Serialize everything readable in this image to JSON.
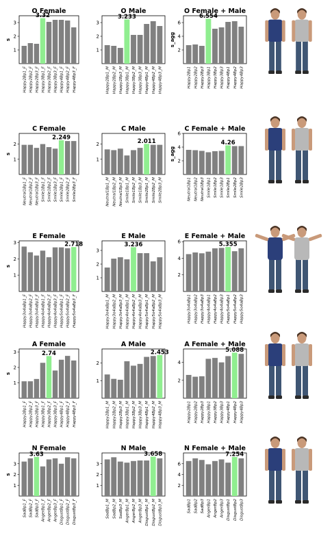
{
  "colors": {
    "bar": "#808080",
    "highlight": "#90ee90",
    "axis": "#000000"
  },
  "chart_data": [
    {
      "type": "bar",
      "title": "O Female",
      "ylabel": "s",
      "ylim": [
        0,
        3.5
      ],
      "yticks": [
        1,
        2,
        3
      ],
      "categories": [
        "Happy2Bp1_F",
        "Happy2Bp2_F",
        "Happy2Bp3_F",
        "Happy3Bp1_F",
        "Happy3Bp2_F",
        "Happy3Bp3_F",
        "Happy4Bp1_F",
        "Happy4Bp2_F",
        "Happy4Bp3_F"
      ],
      "values": [
        1.3,
        1.5,
        1.45,
        3.32,
        3.05,
        3.2,
        3.2,
        3.15,
        2.65
      ],
      "highlight_index": 3,
      "highlight_label": "3.32"
    },
    {
      "type": "bar",
      "title": "O Male",
      "ylabel": "",
      "ylim": [
        0,
        3.5
      ],
      "yticks": [
        1,
        2,
        3
      ],
      "categories": [
        "Happy2Bp1_M",
        "Happy2Bp2_M",
        "Happy2Bp3_M",
        "Happy3Bp1_M",
        "Happy3Bp2_M",
        "Happy3Bp3_M",
        "Happy4Bp1_M",
        "Happy4Bp2_M",
        "Happy4Bp3_M"
      ],
      "values": [
        1.35,
        1.3,
        1.15,
        3.233,
        2.1,
        2.1,
        2.9,
        3.1,
        2.75
      ],
      "highlight_index": 3,
      "highlight_label": "3.233"
    },
    {
      "type": "bar",
      "title": "O Female + Male",
      "ylabel": "s_agg",
      "ylim": [
        0,
        7
      ],
      "yticks": [
        2,
        4,
        6
      ],
      "categories": [
        "Happy2Bp1",
        "Happy2Bp2",
        "Happy2Bp3",
        "Happy3Bp1",
        "Happy3Bp2",
        "Happy3Bp3",
        "Happy4Bp1",
        "Happy4Bp2",
        "Happy4Bp3"
      ],
      "values": [
        2.7,
        2.8,
        2.6,
        6.554,
        5.1,
        5.3,
        6.1,
        6.2,
        5.4
      ],
      "highlight_index": 3,
      "highlight_label": "6.554"
    },
    {
      "type": "bar",
      "title": "C Female",
      "ylabel": "s",
      "ylim": [
        0,
        2.7
      ],
      "yticks": [
        1,
        2
      ],
      "categories": [
        "Neutral1Bp1_F",
        "Neutral1Bp2_F",
        "Neutral1Bp3_F",
        "Smile1Bp1_F",
        "Smile1Bp2_F",
        "Smile1Bp3_F",
        "Smile2Bp1_F",
        "Smile2Bp2_F",
        "Smile2Bp3_F"
      ],
      "values": [
        1.95,
        1.95,
        1.75,
        2.0,
        1.8,
        1.7,
        2.249,
        2.2,
        2.2
      ],
      "highlight_index": 6,
      "highlight_label": "2.249"
    },
    {
      "type": "bar",
      "title": "C Male",
      "ylabel": "",
      "ylim": [
        0,
        2.7
      ],
      "yticks": [
        1,
        2
      ],
      "categories": [
        "Neutral1Bp1_M",
        "Neutral1Bp2_M",
        "Neutral1Bp3_M",
        "Smile1Bp1_M",
        "Smile1Bp2_M",
        "Smile1Bp3_M",
        "Smile2Bp1_M",
        "Smile2Bp2_M",
        "Smile2Bp3_M"
      ],
      "values": [
        1.65,
        1.6,
        1.7,
        1.25,
        1.6,
        1.75,
        2.011,
        1.95,
        1.95
      ],
      "highlight_index": 6,
      "highlight_label": "2.011"
    },
    {
      "type": "bar",
      "title": "C Female + Male",
      "ylabel": "s_agg",
      "ylim": [
        0,
        6
      ],
      "yticks": [
        2,
        4,
        6
      ],
      "categories": [
        "Neutral1Bp1",
        "Neutral1Bp2",
        "Neutral1Bp3",
        "Smile1Bp1",
        "Smile1Bp2",
        "Smile1Bp3",
        "Smile2Bp1",
        "Smile2Bp2",
        "Smile2Bp3"
      ],
      "values": [
        3.6,
        3.55,
        3.45,
        3.25,
        3.4,
        3.45,
        4.26,
        4.15,
        4.15
      ],
      "highlight_index": 6,
      "highlight_label": "4.26"
    },
    {
      "type": "bar",
      "title": "E Female",
      "ylabel": "s",
      "ylim": [
        0,
        3.1
      ],
      "yticks": [
        1,
        2,
        3
      ],
      "categories": [
        "Happy3o4aBp1_F",
        "Happy3o4aBp2_F",
        "Happy3o4aBp3_F",
        "Happy4o4aBp1_F",
        "Happy4o4aBp2_F",
        "Happy4o4aBp3_F",
        "Happy5o4aBp1_F",
        "Happy5o4aBp2_F",
        "Happy5o4aBp3_F"
      ],
      "values": [
        2.75,
        2.4,
        2.2,
        2.5,
        2.1,
        2.7,
        2.7,
        2.65,
        2.718
      ],
      "highlight_index": 8,
      "highlight_label": "2.718"
    },
    {
      "type": "bar",
      "title": "E Male",
      "ylabel": "",
      "ylim": [
        0,
        3.7
      ],
      "yticks": [
        1,
        2,
        3
      ],
      "categories": [
        "Happy3o4aBp1_M",
        "Happy3o4aBp2_M",
        "Happy3o4aBp3_M",
        "Happy4o4aBp1_M",
        "Happy4o4aBp2_M",
        "Happy4o4aBp3_M",
        "Happy5o4aBp1_M",
        "Happy5o4aBp2_M",
        "Happy5o4aBp3_M"
      ],
      "values": [
        1.75,
        2.4,
        2.5,
        2.35,
        3.236,
        2.8,
        2.8,
        2.2,
        2.5
      ],
      "highlight_index": 4,
      "highlight_label": "3.236"
    },
    {
      "type": "bar",
      "title": "E Female + Male",
      "ylabel": "",
      "ylim": [
        0,
        6.1
      ],
      "yticks": [
        2,
        4,
        6
      ],
      "categories": [
        "Happy3o4aBp1",
        "Happy3o4aBp2",
        "Happy3o4aBp3",
        "Happy4o4aBp1",
        "Happy4o4aBp2",
        "Happy4o4aBp3",
        "Happy5o4aBp1",
        "Happy5o4aBp2",
        "Happy5o4aBp3"
      ],
      "values": [
        4.5,
        4.7,
        4.6,
        4.8,
        5.2,
        5.25,
        5.355,
        4.85,
        5.2
      ],
      "highlight_index": 6,
      "highlight_label": "5.355"
    },
    {
      "type": "bar",
      "title": "A Female",
      "ylabel": "s",
      "ylim": [
        0,
        3.2
      ],
      "yticks": [
        1,
        2,
        3
      ],
      "categories": [
        "Happy2Bp1_F",
        "Happy2Bp2_F",
        "Happy2Bp3_F",
        "Happy3Bp1_F",
        "Happy3Bp2_F",
        "Happy3Bp3_F",
        "Happy4Bp1_F",
        "Happy4Bp2_F",
        "Happy4Bp3_F"
      ],
      "values": [
        1.1,
        1.1,
        1.25,
        2.3,
        2.74,
        1.8,
        2.5,
        2.75,
        2.45
      ],
      "highlight_index": 4,
      "highlight_label": "2.74"
    },
    {
      "type": "bar",
      "title": "A Male",
      "ylabel": "",
      "ylim": [
        0,
        2.8
      ],
      "yticks": [
        1,
        2
      ],
      "categories": [
        "Happy2Bp1_M",
        "Happy2Bp2_M",
        "Happy2Bp3_M",
        "Happy3Bp1_M",
        "Happy3Bp2_M",
        "Happy3Bp3_M",
        "Happy4Bp1_M",
        "Happy4Bp2_M",
        "Happy4Bp3_M"
      ],
      "values": [
        1.35,
        1.1,
        1.05,
        2.1,
        1.85,
        1.95,
        2.35,
        2.4,
        2.453
      ],
      "highlight_index": 8,
      "highlight_label": "2.453"
    },
    {
      "type": "bar",
      "title": "A Female + Male",
      "ylabel": "",
      "ylim": [
        0,
        5.5
      ],
      "yticks": [
        2,
        4
      ],
      "categories": [
        "Happy2Bp1",
        "Happy2Bp2",
        "Happy2Bp3",
        "Happy3Bp1",
        "Happy3Bp2",
        "Happy3Bp3",
        "Happy4Bp1",
        "Happy4Bp2",
        "Happy4Bp3"
      ],
      "values": [
        2.6,
        2.4,
        2.45,
        4.4,
        4.5,
        4.0,
        4.7,
        5.088,
        4.95
      ],
      "highlight_index": 7,
      "highlight_label": "5.088"
    },
    {
      "type": "bar",
      "title": "N Female",
      "ylabel": "s",
      "ylim": [
        0,
        4
      ],
      "yticks": [
        1,
        2,
        3
      ],
      "categories": [
        "SadBp1_F",
        "SadBp2_F",
        "SadBp3_F",
        "AngerBp1_F",
        "AngerBp2_F",
        "AngerBp3_F",
        "DisgustBp1_F",
        "DisgustBp2_F",
        "DisgustBp3_F"
      ],
      "values": [
        3.2,
        3.5,
        3.63,
        2.75,
        3.4,
        3.5,
        3.0,
        3.6,
        3.5
      ],
      "highlight_index": 2,
      "highlight_label": "3.63"
    },
    {
      "type": "bar",
      "title": "N Male",
      "ylabel": "",
      "ylim": [
        0,
        4
      ],
      "yticks": [
        1,
        2,
        3
      ],
      "categories": [
        "SadBp1_M",
        "SadBp2_M",
        "SadBp3_M",
        "AngerBp1_M",
        "AngerBp2_M",
        "AngerBp3_M",
        "DisgustBp1_M",
        "DisgustBp2_M",
        "DisgustBp3_M"
      ],
      "values": [
        3.4,
        3.6,
        3.2,
        3.1,
        3.25,
        3.3,
        3.3,
        3.658,
        3.5
      ],
      "highlight_index": 7,
      "highlight_label": "3.658"
    },
    {
      "type": "bar",
      "title": "N Female + Male",
      "ylabel": "",
      "ylim": [
        0,
        8
      ],
      "yticks": [
        2,
        4,
        6
      ],
      "categories": [
        "SadBp1",
        "SadBp2",
        "SadBp3",
        "AngerBp1",
        "AngerBp2",
        "AngerBp3",
        "DisgustBp1",
        "DisgustBp2",
        "DisgustBp3"
      ],
      "values": [
        6.5,
        7.0,
        6.7,
        5.9,
        6.5,
        6.8,
        6.2,
        7.254,
        7.0
      ],
      "highlight_index": 7,
      "highlight_label": "7.254"
    }
  ]
}
